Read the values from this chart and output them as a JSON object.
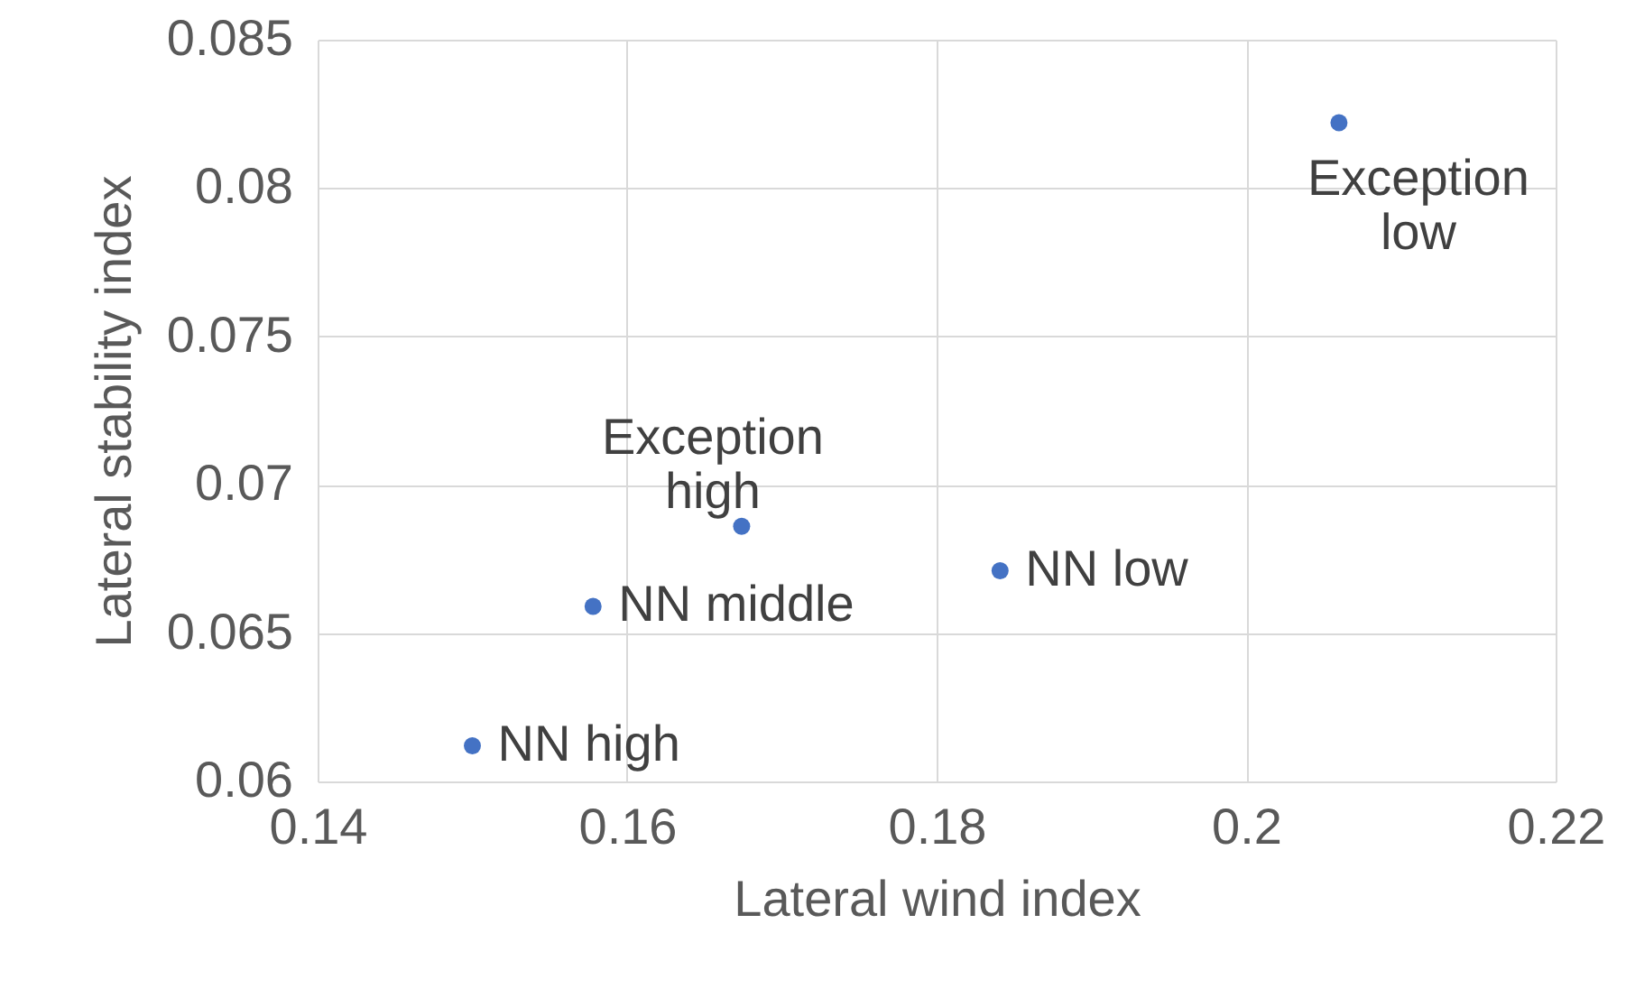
{
  "chart_data": {
    "type": "scatter",
    "xlabel": "Lateral wind index",
    "ylabel": "Lateral stability index",
    "x": [
      0.15,
      0.1578,
      0.1674,
      0.1841,
      0.206
    ],
    "series": [
      {
        "color": "#4472c4",
        "values": [
          0.0612,
          0.0659,
          0.0686,
          0.0671,
          0.0822
        ]
      }
    ],
    "xlim": [
      0.14,
      0.22
    ],
    "xticks": [
      0.14,
      0.16,
      0.18,
      0.2,
      0.22
    ],
    "ylim": [
      0.06,
      0.085
    ],
    "yticks": [
      0.06,
      0.065,
      0.07,
      0.075,
      0.08,
      0.085
    ],
    "grid": true,
    "marker": "circle",
    "legend": false,
    "annotations": [
      {
        "text": "NN high",
        "x": 0.15,
        "y": 0.0612
      },
      {
        "text": "NN middle",
        "x": 0.1578,
        "y": 0.0659
      },
      {
        "text": "Exception high",
        "x": 0.1674,
        "y": 0.0686
      },
      {
        "text": "NN low",
        "x": 0.1841,
        "y": 0.0671
      },
      {
        "text": "Exception low",
        "x": 0.206,
        "y": 0.0822
      }
    ]
  }
}
